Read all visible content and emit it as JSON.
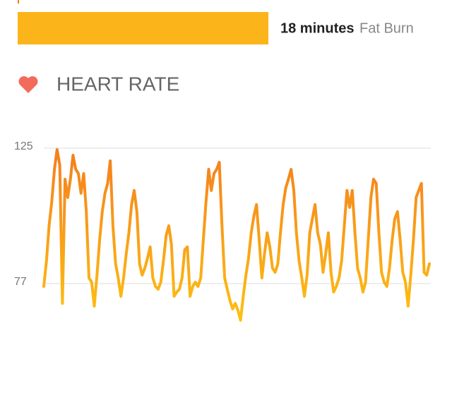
{
  "zone": {
    "duration": "18 minutes",
    "zone_name": "Fat Burn"
  },
  "section_title": "HEART RATE",
  "chart_data": {
    "type": "line",
    "ylim": [
      60,
      130
    ],
    "yticks": [
      77,
      125
    ],
    "grid": true,
    "gradient_colors": [
      "#fdc211",
      "#f47b20"
    ],
    "series": [
      {
        "values": [
          76,
          85,
          97.5,
          106,
          117.5,
          124.5,
          119,
          70,
          114,
          107.5,
          114,
          122.5,
          117.5,
          116,
          109,
          116,
          102.5,
          79,
          77.5,
          69,
          80,
          92.5,
          102.5,
          109,
          112.5,
          120.5,
          97.5,
          84,
          79,
          72.5,
          79,
          87.5,
          95,
          105,
          110,
          102.5,
          84,
          80,
          82.5,
          86,
          90,
          79,
          76,
          75,
          77.5,
          85,
          94,
          97.5,
          91,
          72.5,
          74,
          75,
          79,
          89,
          90,
          72.5,
          76,
          77.5,
          76,
          79,
          92.5,
          106,
          117.5,
          110,
          116,
          117.5,
          120,
          97.5,
          79,
          75,
          71,
          68,
          70,
          67.5,
          64,
          72.5,
          80,
          86,
          95,
          101,
          105,
          92.5,
          79,
          87.5,
          95,
          90,
          82.5,
          81,
          84,
          95,
          105,
          111,
          114,
          117.5,
          110,
          95,
          85,
          79,
          72.5,
          80,
          95,
          100,
          105,
          95,
          91,
          81,
          87.5,
          95,
          81,
          74,
          76,
          79,
          85,
          97.5,
          110,
          104,
          110,
          95,
          82.5,
          79,
          74,
          77.5,
          92.5,
          107.5,
          114,
          112.5,
          95,
          81,
          77.5,
          76,
          82.5,
          92.5,
          100,
          102.5,
          92.5,
          81,
          77.5,
          69,
          80,
          92.5,
          107.5,
          110,
          112.5,
          81,
          80,
          84
        ]
      }
    ]
  }
}
